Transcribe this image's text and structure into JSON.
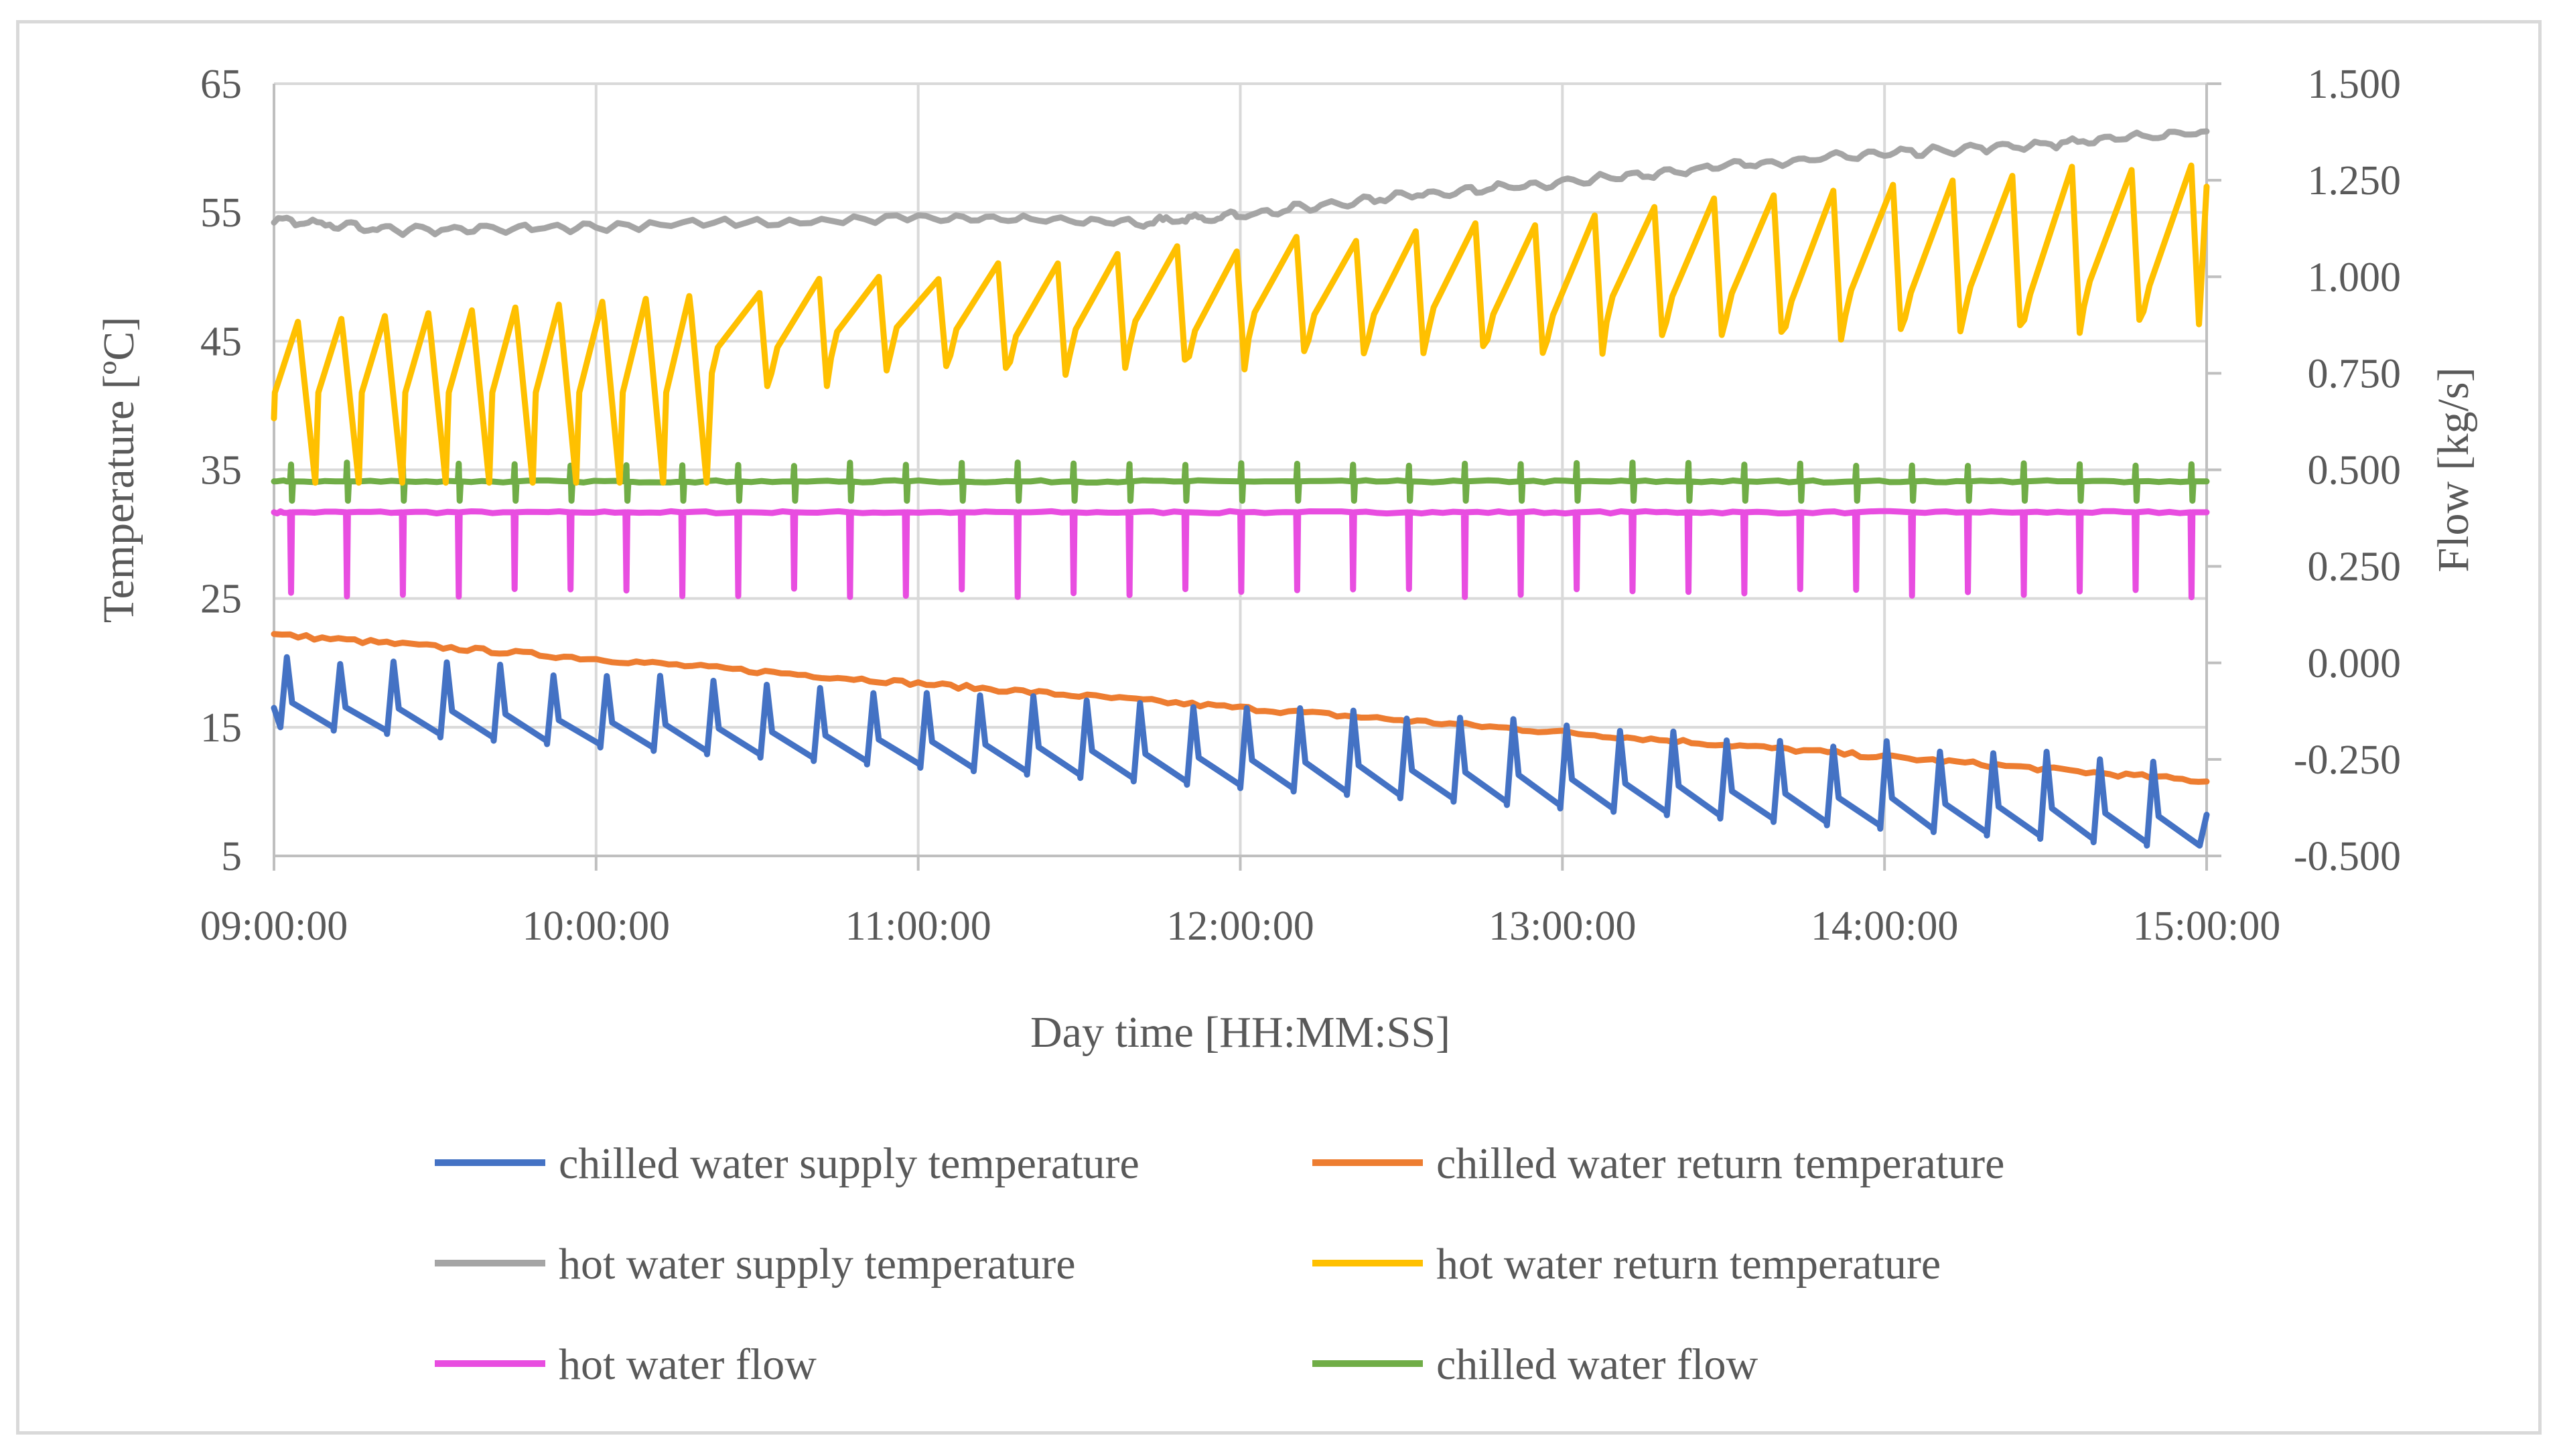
{
  "chart_data": {
    "type": "line",
    "title": "",
    "xlabel": "Day time [HH:MM:SS]",
    "ylabel": "Temperature [ºC]",
    "y2label": "Flow [kg/s]",
    "x_ticks": [
      "09:00:00",
      "10:00:00",
      "11:00:00",
      "12:00:00",
      "13:00:00",
      "14:00:00",
      "15:00:00"
    ],
    "x_range_hours": [
      9,
      15
    ],
    "ylim": [
      5,
      65
    ],
    "y_ticks": [
      "5",
      "15",
      "25",
      "35",
      "45",
      "55",
      "65"
    ],
    "y2lim": [
      -0.5,
      1.5
    ],
    "y2_ticks": [
      "-0.500",
      "-0.250",
      "0.000",
      "0.250",
      "0.500",
      "0.750",
      "1.000",
      "1.250",
      "1.500"
    ],
    "grid": true,
    "legend_position": "bottom",
    "series": [
      {
        "name": "chilled water supply temperature",
        "axis": "left",
        "color": "#4472C4",
        "pattern": "sawtooth",
        "cycles": 36,
        "start_low": 15.0,
        "end_low": 5.8,
        "start_peak": 20.5,
        "end_peak": 12.5,
        "final": 8.2
      },
      {
        "name": "chilled water return temperature",
        "axis": "left",
        "color": "#ED7D31",
        "pattern": "linear",
        "start": 22.2,
        "end": 10.8
      },
      {
        "name": "hot water supply temperature",
        "axis": "left",
        "color": "#A5A5A5",
        "pattern": "drift",
        "points": [
          [
            9.0,
            54.4
          ],
          [
            9.4,
            53.6
          ],
          [
            10.0,
            53.9
          ],
          [
            11.0,
            54.6
          ],
          [
            11.7,
            54.2
          ],
          [
            12.0,
            54.8
          ],
          [
            12.5,
            56.3
          ],
          [
            13.0,
            57.3
          ],
          [
            13.5,
            58.6
          ],
          [
            14.0,
            59.6
          ],
          [
            14.5,
            60.3
          ],
          [
            15.0,
            61.3
          ]
        ]
      },
      {
        "name": "hot water return temperature",
        "axis": "left",
        "color": "#FFC000",
        "pattern": "sawtooth",
        "cycles_phase1": 10,
        "phase1_end_hour": 10.35,
        "phase1_low": 34.0,
        "phase1_peak_start": 46.5,
        "phase1_peak_end": 48.5,
        "cycles_phase2": 25,
        "phase2_low_start": 45.0,
        "phase2_low_end": 49.5,
        "phase2_peak_start": 49.0,
        "phase2_peak_end": 59.0,
        "final": 57.0
      },
      {
        "name": "hot water flow",
        "axis": "right",
        "color": "#E84DE0",
        "pattern": "spikes",
        "baseline": 0.39,
        "spike_min": 0.17,
        "spikes": 35
      },
      {
        "name": "chilled water flow",
        "axis": "right",
        "color": "#70AD47",
        "pattern": "spikes",
        "baseline": 0.47,
        "spike_low": 0.42,
        "spike_high": 0.52,
        "spikes": 35
      }
    ]
  }
}
